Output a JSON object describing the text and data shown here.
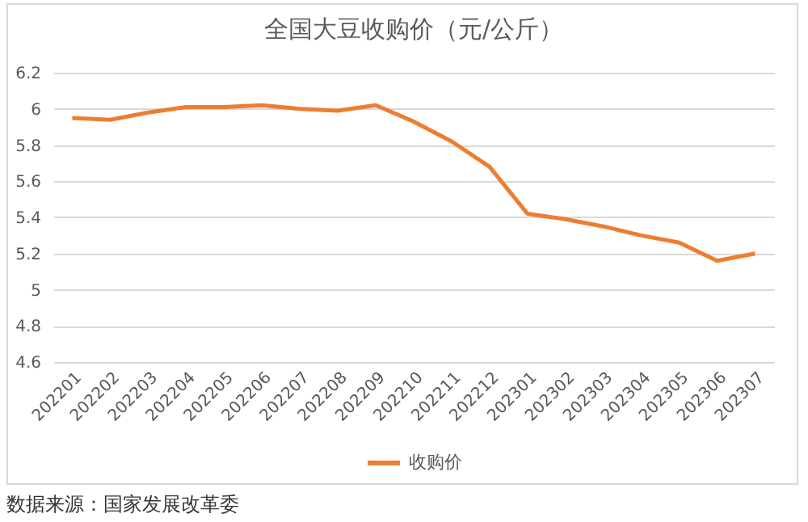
{
  "chart_data": {
    "type": "line",
    "title": "全国大豆收购价（元/公斤）",
    "categories": [
      "202201",
      "202202",
      "202203",
      "202204",
      "202205",
      "202206",
      "202207",
      "202208",
      "202209",
      "202210",
      "202211",
      "202212",
      "202301",
      "202302",
      "202303",
      "202304",
      "202305",
      "202306",
      "202307"
    ],
    "series": [
      {
        "name": "收购价",
        "color": "#ed7d31",
        "values": [
          5.95,
          5.94,
          5.98,
          6.01,
          6.01,
          6.02,
          6.0,
          5.99,
          6.02,
          5.93,
          5.82,
          5.68,
          5.42,
          5.39,
          5.35,
          5.3,
          5.26,
          5.16,
          5.2
        ]
      }
    ],
    "ylim": [
      4.6,
      6.2
    ],
    "yticks": [
      4.6,
      4.8,
      5,
      5.2,
      5.4,
      5.6,
      5.8,
      6,
      6.2
    ],
    "grid": "y",
    "legend": "bottom",
    "marker": "none",
    "line_style": "solid",
    "annotations": [
      "数据来源：国家发展改革委"
    ]
  }
}
